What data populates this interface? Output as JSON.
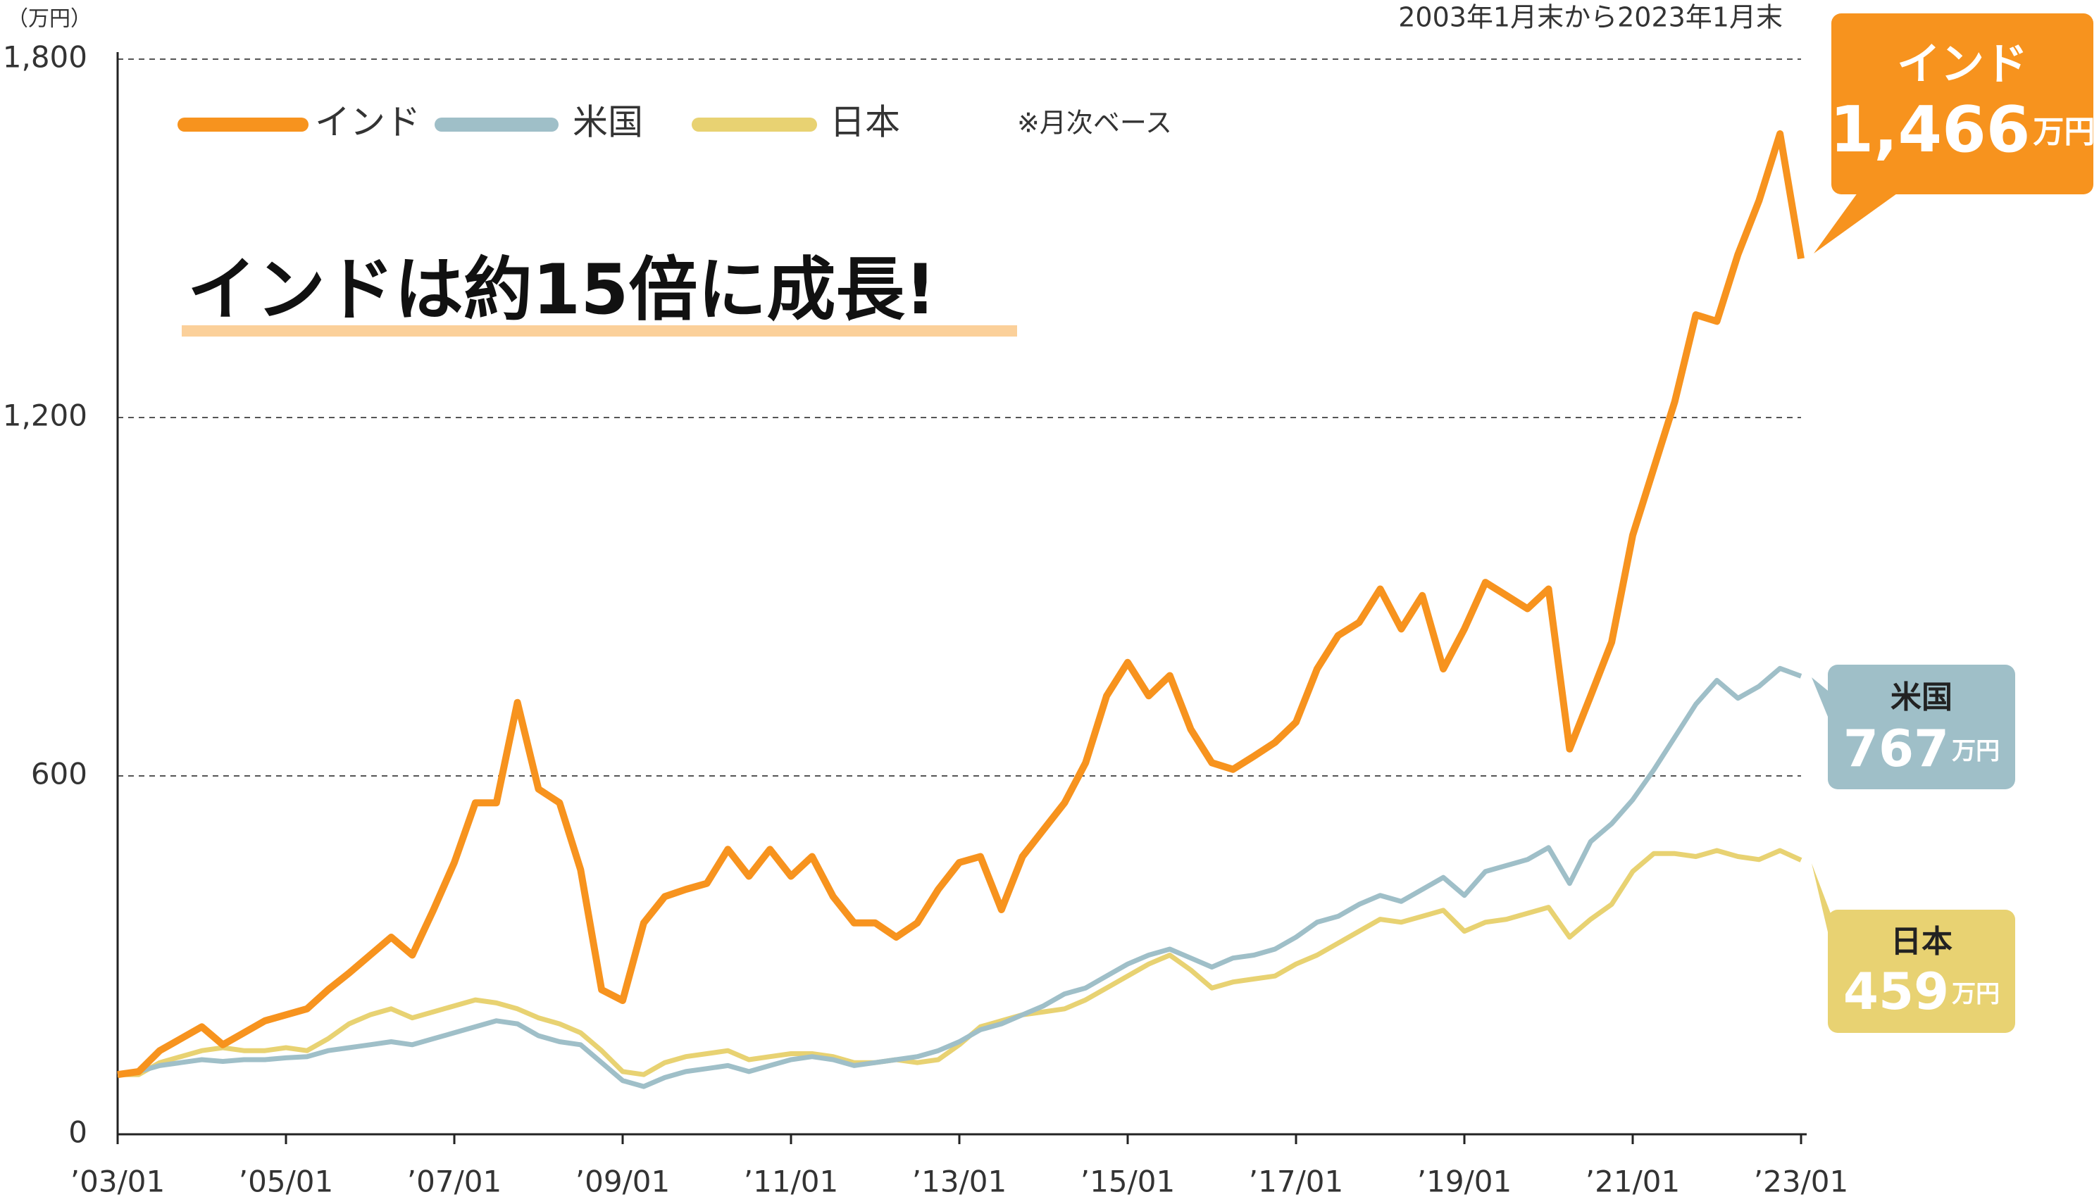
{
  "chart_data": {
    "type": "line",
    "title": "インドは約15倍に成長!",
    "subtitle": "2003年1月末から2023年1月末",
    "y_label": "（万円）",
    "note": "※月次ベース",
    "x": [
      2003,
      2003.25,
      2003.5,
      2003.75,
      2004,
      2004.25,
      2004.5,
      2004.75,
      2005,
      2005.25,
      2005.5,
      2005.75,
      2006,
      2006.25,
      2006.5,
      2006.75,
      2007,
      2007.25,
      2007.5,
      2007.75,
      2008,
      2008.25,
      2008.5,
      2008.75,
      2009,
      2009.25,
      2009.5,
      2009.75,
      2010,
      2010.25,
      2010.5,
      2010.75,
      2011,
      2011.25,
      2011.5,
      2011.75,
      2012,
      2012.25,
      2012.5,
      2012.75,
      2013,
      2013.25,
      2013.5,
      2013.75,
      2014,
      2014.25,
      2014.5,
      2014.75,
      2015,
      2015.25,
      2015.5,
      2015.75,
      2016,
      2016.25,
      2016.5,
      2016.75,
      2017,
      2017.25,
      2017.5,
      2017.75,
      2018,
      2018.25,
      2018.5,
      2018.75,
      2019,
      2019.25,
      2019.5,
      2019.75,
      2020,
      2020.25,
      2020.5,
      2020.75,
      2021,
      2021.25,
      2021.5,
      2021.75,
      2022,
      2022.25,
      2022.5,
      2022.75,
      2023
    ],
    "series": [
      {
        "name": "インド",
        "color": "#f7931e",
        "end_label": "1,466",
        "end_unit": "万円",
        "values": [
          100,
          105,
          140,
          160,
          180,
          150,
          170,
          190,
          200,
          210,
          242,
          270,
          300,
          330,
          300,
          375,
          455,
          555,
          555,
          723,
          578,
          555,
          443,
          242,
          224,
          354,
          398,
          410,
          420,
          477,
          432,
          477,
          432,
          465,
          398,
          354,
          354,
          330,
          354,
          410,
          455,
          465,
          376,
          465,
          510,
          555,
          622,
          734,
          790,
          734,
          768,
          678,
          622,
          611,
          633,
          656,
          690,
          779,
          835,
          857,
          913,
          846,
          902,
          779,
          846,
          924,
          902,
          880,
          913,
          645,
          734,
          824,
          1003,
          1115,
          1227,
          1372,
          1361,
          1473,
          1563,
          1675,
          1466
        ]
      },
      {
        "name": "米国",
        "color": "#9fbfc8",
        "end_label": "767",
        "end_unit": "万円",
        "values": [
          100,
          105,
          115,
          120,
          125,
          122,
          125,
          125,
          128,
          130,
          140,
          145,
          150,
          155,
          150,
          160,
          170,
          180,
          190,
          185,
          165,
          155,
          150,
          120,
          90,
          80,
          95,
          105,
          110,
          115,
          105,
          115,
          125,
          130,
          125,
          115,
          120,
          125,
          130,
          140,
          155,
          175,
          185,
          200,
          215,
          235,
          245,
          265,
          285,
          300,
          310,
          295,
          280,
          295,
          300,
          310,
          330,
          355,
          365,
          385,
          400,
          390,
          410,
          430,
          400,
          440,
          450,
          460,
          480,
          420,
          490,
          520,
          560,
          610,
          665,
          720,
          760,
          730,
          750,
          780,
          767
        ]
      },
      {
        "name": "日本",
        "color": "#e8d272",
        "end_label": "459",
        "end_unit": "万円",
        "values": [
          100,
          100,
          120,
          130,
          140,
          145,
          140,
          140,
          145,
          140,
          160,
          185,
          200,
          210,
          195,
          205,
          215,
          225,
          220,
          210,
          195,
          185,
          170,
          140,
          105,
          100,
          120,
          130,
          135,
          140,
          125,
          130,
          135,
          135,
          130,
          120,
          120,
          125,
          120,
          125,
          150,
          180,
          190,
          200,
          205,
          210,
          225,
          245,
          265,
          285,
          300,
          275,
          245,
          255,
          260,
          265,
          285,
          300,
          320,
          340,
          360,
          355,
          365,
          375,
          340,
          355,
          360,
          370,
          380,
          330,
          360,
          385,
          440,
          470,
          470,
          465,
          475,
          465,
          460,
          475,
          459
        ]
      }
    ],
    "xlim": [
      2003,
      2023
    ],
    "xticks": [
      {
        "value": 2003,
        "label": "’03/01"
      },
      {
        "value": 2005,
        "label": "’05/01"
      },
      {
        "value": 2007,
        "label": "’07/01"
      },
      {
        "value": 2009,
        "label": "’09/01"
      },
      {
        "value": 2011,
        "label": "’11/01"
      },
      {
        "value": 2013,
        "label": "’13/01"
      },
      {
        "value": 2015,
        "label": "’15/01"
      },
      {
        "value": 2017,
        "label": "’17/01"
      },
      {
        "value": 2019,
        "label": "’19/01"
      },
      {
        "value": 2021,
        "label": "’21/01"
      },
      {
        "value": 2023,
        "label": "’23/01"
      }
    ],
    "ylim": [
      0,
      1800
    ],
    "yticks": [
      0,
      600,
      {
        "value": 1200,
        "label": "1,200"
      },
      {
        "value": 1800,
        "label": "1,800"
      }
    ],
    "grid": true
  }
}
